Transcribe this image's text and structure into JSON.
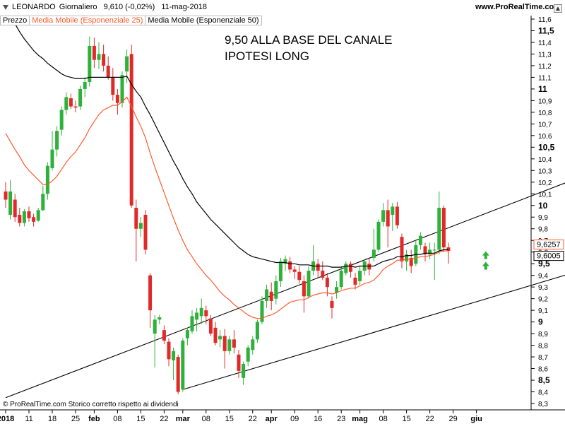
{
  "header": {
    "symbol": "LEONARDO",
    "period": "Giornaliero",
    "quote": "9,610 (-0,02%)",
    "date": "11-mag-2018",
    "site": "www.ProRealTime.com"
  },
  "legend": {
    "price": "Prezzo",
    "ema25": "Media Mobile (Esponenziale 25)",
    "ema50": "Media Mobile (Esponenziale 50)"
  },
  "annotation": {
    "line1": "9,50 ALLA BASE DEL CANALE",
    "line2": "IPOTESI LONG"
  },
  "footer": {
    "credit": "© ProRealTime.com  Storico corretto rispetto ai dividendi"
  },
  "colors": {
    "up": "#2db13a",
    "down": "#e02a2a",
    "ema25": "#ff5a2c",
    "ema50": "#000000",
    "channel": "#000000",
    "arrow": "#2db13a"
  },
  "chart_data": {
    "type": "candlestick",
    "ylim": [
      8.25,
      11.65
    ],
    "y_ticks": [
      "11,6",
      "11,5",
      "11,4",
      "11,3",
      "11,2",
      "11,1",
      "11",
      "10,9",
      "10,8",
      "10,7",
      "10,6",
      "10,5",
      "10,4",
      "10,3",
      "10,2",
      "10,1",
      "10",
      "9,9",
      "9,8",
      "9,7",
      "9,6",
      "9,5",
      "9,4",
      "9,3",
      "9,2",
      "9,1",
      "9",
      "8,9",
      "8,8",
      "8,7",
      "8,6",
      "8,5",
      "8,4",
      "8,3"
    ],
    "y_tick_values": [
      11.6,
      11.5,
      11.4,
      11.3,
      11.2,
      11.1,
      11.0,
      10.9,
      10.8,
      10.7,
      10.6,
      10.5,
      10.4,
      10.3,
      10.2,
      10.1,
      10.0,
      9.9,
      9.8,
      9.7,
      9.6,
      9.5,
      9.4,
      9.3,
      9.2,
      9.1,
      9.0,
      8.9,
      8.8,
      8.7,
      8.6,
      8.5,
      8.4,
      8.3
    ],
    "y_major": [
      "11,5",
      "11",
      "10,5",
      "10",
      "9,5",
      "9",
      "8,5"
    ],
    "x_labels": [
      "2018",
      "11",
      "18",
      "25",
      "feb",
      "08",
      "15",
      "22",
      "mar",
      "08",
      "15",
      "22",
      "apr",
      "09",
      "16",
      "23",
      "mag",
      "08",
      "15",
      "22",
      "29",
      "giu"
    ],
    "x_label_index": [
      0,
      5,
      10,
      15,
      19,
      24,
      29,
      34,
      38,
      43,
      48,
      53,
      57,
      62,
      67,
      72,
      76,
      81,
      86,
      91,
      96,
      101
    ],
    "last_price_labels": [
      "9,6257",
      "9,6005"
    ],
    "last_price_values": [
      9.6257,
      9.6005
    ],
    "candles": [
      {
        "o": 10.12,
        "h": 10.2,
        "l": 9.98,
        "c": 10.05
      },
      {
        "o": 9.92,
        "h": 10.22,
        "l": 9.88,
        "c": 10.12
      },
      {
        "o": 10.05,
        "h": 10.1,
        "l": 9.86,
        "c": 9.9
      },
      {
        "o": 9.92,
        "h": 9.98,
        "l": 9.82,
        "c": 9.85
      },
      {
        "o": 9.85,
        "h": 9.97,
        "l": 9.82,
        "c": 9.95
      },
      {
        "o": 9.95,
        "h": 9.99,
        "l": 9.86,
        "c": 9.89
      },
      {
        "o": 9.9,
        "h": 9.93,
        "l": 9.82,
        "c": 9.86
      },
      {
        "o": 9.87,
        "h": 9.98,
        "l": 9.86,
        "c": 9.96
      },
      {
        "o": 9.96,
        "h": 10.17,
        "l": 9.95,
        "c": 10.1
      },
      {
        "o": 10.1,
        "h": 10.37,
        "l": 10.05,
        "c": 10.34
      },
      {
        "o": 10.32,
        "h": 10.64,
        "l": 10.3,
        "c": 10.48
      },
      {
        "o": 10.48,
        "h": 10.68,
        "l": 10.42,
        "c": 10.64
      },
      {
        "o": 10.65,
        "h": 10.85,
        "l": 10.6,
        "c": 10.82
      },
      {
        "o": 10.82,
        "h": 10.97,
        "l": 10.78,
        "c": 10.93
      },
      {
        "o": 10.92,
        "h": 10.96,
        "l": 10.83,
        "c": 10.85
      },
      {
        "o": 10.85,
        "h": 10.9,
        "l": 10.8,
        "c": 10.84
      },
      {
        "o": 10.85,
        "h": 11.03,
        "l": 10.82,
        "c": 11.0
      },
      {
        "o": 11.0,
        "h": 11.1,
        "l": 10.93,
        "c": 11.06
      },
      {
        "o": 11.06,
        "h": 11.45,
        "l": 11.02,
        "c": 11.37
      },
      {
        "o": 11.37,
        "h": 11.44,
        "l": 11.18,
        "c": 11.25
      },
      {
        "o": 11.25,
        "h": 11.4,
        "l": 11.17,
        "c": 11.3
      },
      {
        "o": 11.3,
        "h": 11.38,
        "l": 11.15,
        "c": 11.2
      },
      {
        "o": 11.2,
        "h": 11.28,
        "l": 11.08,
        "c": 11.1
      },
      {
        "o": 11.1,
        "h": 11.18,
        "l": 10.9,
        "c": 10.95
      },
      {
        "o": 10.95,
        "h": 11.0,
        "l": 10.78,
        "c": 10.88
      },
      {
        "o": 10.88,
        "h": 11.15,
        "l": 10.84,
        "c": 11.12
      },
      {
        "o": 11.15,
        "h": 11.34,
        "l": 11.05,
        "c": 11.28
      },
      {
        "o": 11.3,
        "h": 11.38,
        "l": 9.98,
        "c": 10.0
      },
      {
        "o": 9.98,
        "h": 10.05,
        "l": 9.52,
        "c": 9.8
      },
      {
        "o": 9.8,
        "h": 9.9,
        "l": 9.73,
        "c": 9.85
      },
      {
        "o": 9.92,
        "h": 9.96,
        "l": 9.58,
        "c": 9.62
      },
      {
        "o": 9.4,
        "h": 9.42,
        "l": 8.95,
        "c": 9.1
      },
      {
        "o": 8.9,
        "h": 9.06,
        "l": 8.61,
        "c": 9.02
      },
      {
        "o": 9.02,
        "h": 9.06,
        "l": 8.98,
        "c": 9.04
      },
      {
        "o": 8.93,
        "h": 8.97,
        "l": 8.81,
        "c": 8.84
      },
      {
        "o": 8.83,
        "h": 8.86,
        "l": 8.62,
        "c": 8.68
      },
      {
        "o": 8.67,
        "h": 8.78,
        "l": 8.5,
        "c": 8.75
      },
      {
        "o": 8.7,
        "h": 8.72,
        "l": 8.38,
        "c": 8.4
      },
      {
        "o": 8.42,
        "h": 8.86,
        "l": 8.4,
        "c": 8.84
      },
      {
        "o": 8.86,
        "h": 8.95,
        "l": 8.8,
        "c": 8.93
      },
      {
        "o": 8.92,
        "h": 9.1,
        "l": 8.9,
        "c": 9.05
      },
      {
        "o": 9.02,
        "h": 9.12,
        "l": 8.92,
        "c": 9.08
      },
      {
        "o": 9.05,
        "h": 9.2,
        "l": 8.98,
        "c": 9.12
      },
      {
        "o": 9.1,
        "h": 9.14,
        "l": 8.98,
        "c": 9.05
      },
      {
        "o": 9.03,
        "h": 9.06,
        "l": 8.88,
        "c": 8.9
      },
      {
        "o": 8.95,
        "h": 9.0,
        "l": 8.8,
        "c": 8.82
      },
      {
        "o": 8.85,
        "h": 8.93,
        "l": 8.78,
        "c": 8.88
      },
      {
        "o": 8.88,
        "h": 8.94,
        "l": 8.6,
        "c": 8.75
      },
      {
        "o": 8.75,
        "h": 8.88,
        "l": 8.72,
        "c": 8.85
      },
      {
        "o": 8.85,
        "h": 8.93,
        "l": 8.73,
        "c": 8.78
      },
      {
        "o": 8.72,
        "h": 8.76,
        "l": 8.52,
        "c": 8.58
      },
      {
        "o": 8.52,
        "h": 8.66,
        "l": 8.46,
        "c": 8.64
      },
      {
        "o": 8.66,
        "h": 8.8,
        "l": 8.62,
        "c": 8.78
      },
      {
        "o": 8.76,
        "h": 8.88,
        "l": 8.72,
        "c": 8.85
      },
      {
        "o": 8.85,
        "h": 9.02,
        "l": 8.82,
        "c": 9.0
      },
      {
        "o": 9.0,
        "h": 9.22,
        "l": 8.98,
        "c": 9.18
      },
      {
        "o": 9.18,
        "h": 9.32,
        "l": 9.12,
        "c": 9.28
      },
      {
        "o": 9.26,
        "h": 9.34,
        "l": 9.1,
        "c": 9.18
      },
      {
        "o": 9.2,
        "h": 9.4,
        "l": 9.15,
        "c": 9.35
      },
      {
        "o": 9.35,
        "h": 9.55,
        "l": 9.3,
        "c": 9.52
      },
      {
        "o": 9.5,
        "h": 9.57,
        "l": 9.44,
        "c": 9.54
      },
      {
        "o": 9.52,
        "h": 9.56,
        "l": 9.42,
        "c": 9.45
      },
      {
        "o": 9.45,
        "h": 9.48,
        "l": 9.37,
        "c": 9.43
      },
      {
        "o": 9.43,
        "h": 9.48,
        "l": 9.33,
        "c": 9.36
      },
      {
        "o": 9.35,
        "h": 9.4,
        "l": 9.08,
        "c": 9.22
      },
      {
        "o": 9.22,
        "h": 9.48,
        "l": 9.2,
        "c": 9.44
      },
      {
        "o": 9.44,
        "h": 9.66,
        "l": 9.4,
        "c": 9.52
      },
      {
        "o": 9.5,
        "h": 9.54,
        "l": 9.38,
        "c": 9.44
      },
      {
        "o": 9.44,
        "h": 9.52,
        "l": 9.36,
        "c": 9.38
      },
      {
        "o": 9.38,
        "h": 9.42,
        "l": 9.22,
        "c": 9.3
      },
      {
        "o": 9.18,
        "h": 9.22,
        "l": 9.03,
        "c": 9.12
      },
      {
        "o": 9.25,
        "h": 9.35,
        "l": 9.2,
        "c": 9.3
      },
      {
        "o": 9.3,
        "h": 9.48,
        "l": 9.28,
        "c": 9.44
      },
      {
        "o": 9.42,
        "h": 9.52,
        "l": 9.4,
        "c": 9.5
      },
      {
        "o": 9.5,
        "h": 9.52,
        "l": 9.38,
        "c": 9.43
      },
      {
        "o": 9.38,
        "h": 9.42,
        "l": 9.28,
        "c": 9.32
      },
      {
        "o": 9.35,
        "h": 9.48,
        "l": 9.32,
        "c": 9.44
      },
      {
        "o": 9.44,
        "h": 9.54,
        "l": 9.4,
        "c": 9.52
      },
      {
        "o": 9.5,
        "h": 9.55,
        "l": 9.4,
        "c": 9.45
      },
      {
        "o": 9.55,
        "h": 9.8,
        "l": 9.52,
        "c": 9.62
      },
      {
        "o": 9.62,
        "h": 9.88,
        "l": 9.6,
        "c": 9.86
      },
      {
        "o": 9.86,
        "h": 10.02,
        "l": 9.82,
        "c": 9.96
      },
      {
        "o": 9.96,
        "h": 10.05,
        "l": 9.64,
        "c": 9.82
      },
      {
        "o": 9.92,
        "h": 10.02,
        "l": 9.78,
        "c": 9.99
      },
      {
        "o": 9.99,
        "h": 10.03,
        "l": 9.8,
        "c": 9.83
      },
      {
        "o": 9.73,
        "h": 9.76,
        "l": 9.46,
        "c": 9.52
      },
      {
        "o": 9.52,
        "h": 9.62,
        "l": 9.44,
        "c": 9.58
      },
      {
        "o": 9.55,
        "h": 9.62,
        "l": 9.42,
        "c": 9.48
      },
      {
        "o": 9.5,
        "h": 9.7,
        "l": 9.48,
        "c": 9.66
      },
      {
        "o": 9.66,
        "h": 9.77,
        "l": 9.62,
        "c": 9.74
      },
      {
        "o": 9.65,
        "h": 9.68,
        "l": 9.52,
        "c": 9.58
      },
      {
        "o": 9.58,
        "h": 9.68,
        "l": 9.54,
        "c": 9.62
      },
      {
        "o": 9.62,
        "h": 9.68,
        "l": 9.36,
        "c": 9.62
      },
      {
        "o": 9.62,
        "h": 10.12,
        "l": 9.58,
        "c": 9.98
      },
      {
        "o": 9.98,
        "h": 10.0,
        "l": 9.6,
        "c": 9.64
      },
      {
        "o": 9.64,
        "h": 9.68,
        "l": 9.5,
        "c": 9.61
      }
    ],
    "ema25": [
      10.62,
      10.55,
      10.48,
      10.42,
      10.35,
      10.3,
      10.26,
      10.22,
      10.18,
      10.18,
      10.21,
      10.25,
      10.31,
      10.37,
      10.42,
      10.46,
      10.52,
      10.58,
      10.66,
      10.72,
      10.78,
      10.82,
      10.84,
      10.86,
      10.86,
      10.89,
      10.93,
      10.85,
      10.76,
      10.68,
      10.58,
      10.45,
      10.33,
      10.22,
      10.11,
      10.0,
      9.89,
      9.79,
      9.7,
      9.62,
      9.56,
      9.5,
      9.45,
      9.4,
      9.36,
      9.31,
      9.26,
      9.22,
      9.19,
      9.15,
      9.12,
      9.09,
      9.06,
      9.04,
      9.03,
      9.03,
      9.05,
      9.06,
      9.08,
      9.11,
      9.14,
      9.17,
      9.18,
      9.19,
      9.19,
      9.21,
      9.23,
      9.24,
      9.25,
      9.25,
      9.24,
      9.25,
      9.27,
      9.28,
      9.29,
      9.29,
      9.31,
      9.33,
      9.34,
      9.36,
      9.4,
      9.45,
      9.48,
      9.5,
      9.53,
      9.53,
      9.54,
      9.54,
      9.55,
      9.56,
      9.56,
      9.57,
      9.58,
      9.6,
      9.61,
      9.61
    ],
    "ema50": [
      11.7,
      11.62,
      11.56,
      11.49,
      11.43,
      11.38,
      11.33,
      11.29,
      11.26,
      11.22,
      11.19,
      11.16,
      11.13,
      11.11,
      11.1,
      11.09,
      11.09,
      11.09,
      11.1,
      11.1,
      11.1,
      11.1,
      11.1,
      11.1,
      11.1,
      11.1,
      11.11,
      11.04,
      10.98,
      10.93,
      10.85,
      10.78,
      10.7,
      10.62,
      10.54,
      10.46,
      10.38,
      10.31,
      10.23,
      10.16,
      10.1,
      10.03,
      9.98,
      9.93,
      9.88,
      9.84,
      9.8,
      9.76,
      9.72,
      9.68,
      9.64,
      9.61,
      9.58,
      9.56,
      9.55,
      9.54,
      9.53,
      9.52,
      9.51,
      9.51,
      9.51,
      9.5,
      9.5,
      9.49,
      9.49,
      9.49,
      9.48,
      9.48,
      9.48,
      9.48,
      9.47,
      9.47,
      9.47,
      9.48,
      9.48,
      9.47,
      9.48,
      9.48,
      9.48,
      9.48,
      9.5,
      9.52,
      9.53,
      9.54,
      9.56,
      9.56,
      9.57,
      9.57,
      9.58,
      9.58,
      9.59,
      9.59,
      9.59,
      9.61,
      9.62,
      9.62
    ],
    "channel_upper": [
      {
        "i": 0,
        "v": 8.35
      },
      {
        "i": 155,
        "v": 10.73
      }
    ],
    "channel_lower": [
      {
        "i": 38,
        "v": 8.42
      },
      {
        "i": 155,
        "v": 9.82
      }
    ],
    "arrows": [
      {
        "i": 103,
        "v": 9.57,
        "dir": "up"
      },
      {
        "i": 103,
        "v": 9.48,
        "dir": "up"
      }
    ]
  }
}
